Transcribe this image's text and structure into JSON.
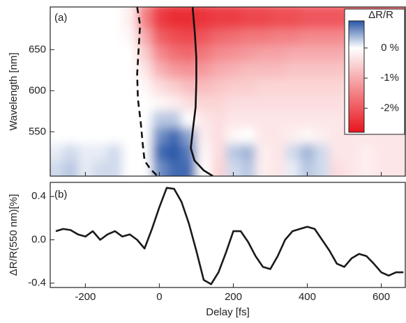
{
  "chart_data": [
    {
      "type": "heatmap",
      "label": "(a)",
      "ylabel": "Wavelength [nm]",
      "x": [
        -280,
        -240,
        -200,
        -160,
        -120,
        -80,
        -40,
        0,
        40,
        80,
        120,
        160,
        200,
        240,
        280,
        320,
        360,
        400,
        440,
        480,
        520,
        560,
        600,
        640
      ],
      "y": [
        685,
        665,
        645,
        625,
        605,
        585,
        565,
        545,
        525,
        505
      ],
      "z": [
        [
          0,
          0,
          0,
          0,
          0,
          -0.2,
          -1.5,
          -2.3,
          -2.5,
          -2.5,
          -2.4,
          -2.3,
          -2.3,
          -2.2,
          -2.2,
          -2.1,
          -2.1,
          -2.0,
          -2.0,
          -2.0,
          -1.9,
          -1.9,
          -1.9,
          -1.8
        ],
        [
          0,
          0,
          0,
          0,
          0,
          -0.1,
          -1.0,
          -1.9,
          -2.1,
          -2.2,
          -2.0,
          -1.8,
          -1.7,
          -1.6,
          -1.6,
          -1.5,
          -1.5,
          -1.4,
          -1.4,
          -1.4,
          -1.3,
          -1.3,
          -1.3,
          -1.2
        ],
        [
          0,
          0,
          0,
          0,
          0,
          0,
          -0.6,
          -1.4,
          -1.7,
          -1.8,
          -1.6,
          -1.4,
          -1.3,
          -1.2,
          -1.1,
          -1.1,
          -1.0,
          -1.0,
          -1.0,
          -1.0,
          -0.9,
          -0.9,
          -0.9,
          -0.9
        ],
        [
          0,
          0,
          0,
          0,
          0,
          0,
          -0.3,
          -0.9,
          -1.2,
          -1.3,
          -1.2,
          -1.0,
          -0.9,
          -0.8,
          -0.8,
          -0.8,
          -0.7,
          -0.7,
          -0.7,
          -0.7,
          -0.7,
          -0.6,
          -0.6,
          -0.6
        ],
        [
          0,
          0,
          0,
          0,
          0,
          0,
          -0.1,
          -0.4,
          -0.6,
          -0.8,
          -0.8,
          -0.7,
          -0.6,
          -0.6,
          -0.5,
          -0.5,
          -0.5,
          -0.5,
          -0.5,
          -0.5,
          -0.4,
          -0.4,
          -0.4,
          -0.4
        ],
        [
          0,
          0,
          0,
          0,
          0,
          0,
          0,
          -0.1,
          -0.2,
          -0.4,
          -0.5,
          -0.5,
          -0.4,
          -0.4,
          -0.4,
          -0.4,
          -0.4,
          -0.4,
          -0.4,
          -0.4,
          -0.3,
          -0.3,
          -0.3,
          -0.3
        ],
        [
          0,
          0,
          0,
          0,
          0,
          0,
          0,
          0.3,
          0.3,
          0,
          -0.3,
          -0.4,
          -0.3,
          -0.3,
          -0.3,
          -0.3,
          -0.3,
          -0.3,
          -0.3,
          -0.3,
          -0.3,
          -0.3,
          -0.3,
          -0.3
        ],
        [
          0,
          0,
          0,
          0,
          0,
          0,
          0,
          0.6,
          0.8,
          0.5,
          -0.2,
          -0.4,
          -0.1,
          0,
          -0.3,
          -0.3,
          -0.2,
          -0.1,
          -0.2,
          -0.3,
          -0.3,
          -0.3,
          -0.3,
          -0.3
        ],
        [
          0.1,
          0.2,
          0.1,
          0.1,
          0.2,
          0,
          0,
          0.8,
          0.9,
          0.7,
          -0.1,
          -0.4,
          0.3,
          0.4,
          -0.2,
          -0.3,
          0.2,
          0.4,
          0.2,
          -0.3,
          -0.3,
          -0.2,
          -0.3,
          -0.3
        ],
        [
          0.2,
          0.3,
          0.1,
          0.2,
          0.2,
          0,
          0,
          0.6,
          0.8,
          0.8,
          0,
          -0.5,
          0.2,
          0.3,
          -0.2,
          -0.3,
          0.1,
          0.3,
          0.2,
          -0.4,
          -0.3,
          -0.2,
          -0.3,
          -0.3
        ]
      ],
      "xlim": [
        -295,
        665
      ],
      "ylim": [
        496,
        702
      ],
      "yticks": [
        550,
        600,
        650
      ],
      "colorbar": {
        "title": "ΔR/R",
        "zlim": [
          -2.8,
          0.9
        ],
        "colors": [
          "#e8141c",
          "#ffffff",
          "#2a58a8"
        ],
        "ticks": [
          {
            "value": 0,
            "label": "0 %"
          },
          {
            "value": -1,
            "label": "-1%"
          },
          {
            "value": -2,
            "label": "-2%"
          }
        ]
      },
      "lines": [
        {
          "color": "#111111",
          "dashed": true,
          "x": [
            -60,
            -52,
            -56,
            -60,
            -58,
            -50,
            -45,
            -40,
            -25,
            -5
          ],
          "values": [
            702,
            680,
            650,
            620,
            590,
            560,
            535,
            515,
            505,
            496
          ]
        },
        {
          "color": "#111111",
          "dashed": false,
          "x": [
            90,
            96,
            100,
            100,
            98,
            90,
            85,
            95,
            120,
            145
          ],
          "values": [
            702,
            670,
            640,
            610,
            580,
            550,
            530,
            515,
            503,
            496
          ]
        }
      ]
    },
    {
      "type": "line",
      "label": "(b)",
      "xlabel": "Delay [fs]",
      "ylabel": "ΔR/R(550 nm)[%]",
      "color": "#1a1a1a",
      "x": [
        -280,
        -260,
        -240,
        -220,
        -200,
        -180,
        -160,
        -140,
        -120,
        -100,
        -80,
        -60,
        -40,
        -20,
        0,
        20,
        40,
        60,
        80,
        100,
        120,
        140,
        160,
        180,
        200,
        220,
        240,
        260,
        280,
        300,
        320,
        340,
        360,
        380,
        400,
        420,
        440,
        460,
        480,
        500,
        520,
        540,
        560,
        580,
        600,
        620,
        640,
        660
      ],
      "values": [
        0.08,
        0.1,
        0.09,
        0.05,
        0.03,
        0.08,
        0.0,
        0.05,
        0.08,
        0.03,
        0.05,
        0.0,
        -0.08,
        0.1,
        0.3,
        0.48,
        0.47,
        0.35,
        0.15,
        -0.1,
        -0.37,
        -0.41,
        -0.3,
        -0.12,
        0.08,
        0.08,
        -0.02,
        -0.15,
        -0.25,
        -0.27,
        -0.15,
        0.0,
        0.08,
        0.1,
        0.12,
        0.1,
        0.0,
        -0.1,
        -0.22,
        -0.25,
        -0.17,
        -0.13,
        -0.15,
        -0.22,
        -0.3,
        -0.33,
        -0.3,
        -0.3
      ],
      "xlim": [
        -295,
        665
      ],
      "ylim": [
        -0.44,
        0.53
      ],
      "xticks": [
        -200,
        0,
        200,
        400,
        600
      ],
      "yticks": [
        -0.4,
        {
          "value": 0,
          "label": "0.0"
        },
        0.4
      ]
    }
  ]
}
